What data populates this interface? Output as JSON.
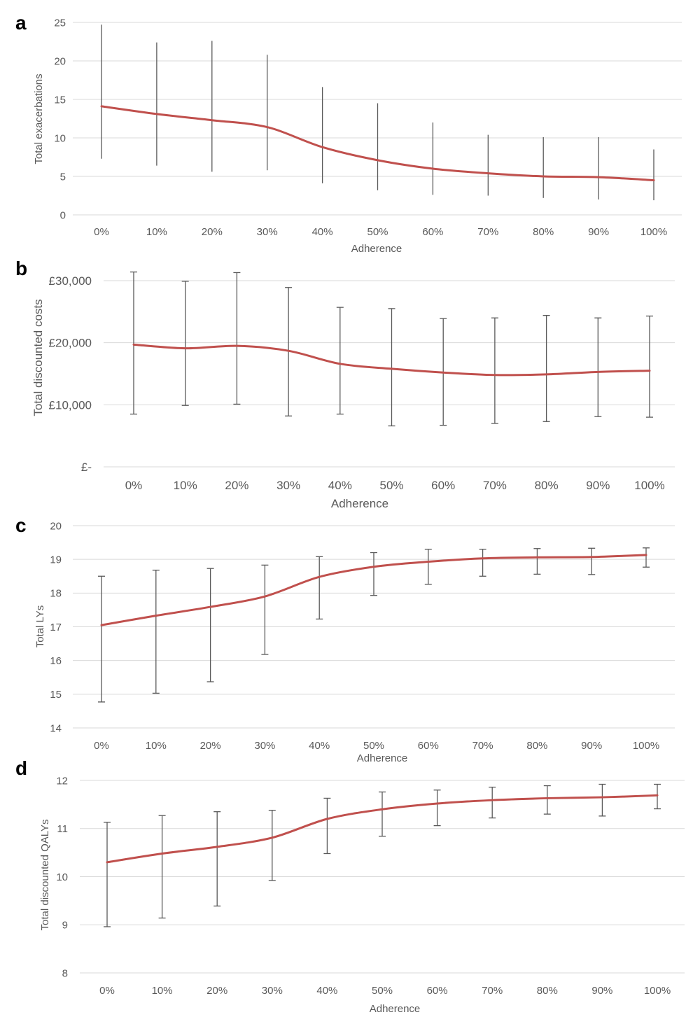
{
  "figure": {
    "series_color": "#c0504d",
    "categories": [
      "0%",
      "10%",
      "20%",
      "30%",
      "40%",
      "50%",
      "60%",
      "70%",
      "80%",
      "90%",
      "100%"
    ]
  },
  "chart_data": [
    {
      "type": "line",
      "panel": "a",
      "xlabel": "Adherence",
      "ylabel": "Total exacerbations",
      "ylim": [
        0,
        25
      ],
      "yticks": [
        0,
        5,
        10,
        15,
        20,
        25
      ],
      "ytick_labels": [
        "0",
        "5",
        "10",
        "15",
        "20",
        "25"
      ],
      "grid": true,
      "legend": "none",
      "categories": [
        "0%",
        "10%",
        "20%",
        "30%",
        "40%",
        "50%",
        "60%",
        "70%",
        "80%",
        "90%",
        "100%"
      ],
      "values": [
        14.1,
        13.1,
        12.3,
        11.4,
        8.8,
        7.1,
        6.0,
        5.4,
        5.0,
        4.9,
        4.5
      ],
      "error_low": [
        7.3,
        6.4,
        5.6,
        5.8,
        4.1,
        3.2,
        2.6,
        2.5,
        2.2,
        2.0,
        1.9
      ],
      "error_high": [
        24.7,
        22.4,
        22.6,
        20.8,
        16.6,
        14.5,
        12.0,
        10.4,
        10.1,
        10.1,
        8.5
      ]
    },
    {
      "type": "line",
      "panel": "b",
      "xlabel": "Adherence",
      "ylabel": "Total discounted costs",
      "ylim": [
        0,
        30000
      ],
      "yticks": [
        0,
        10000,
        20000,
        30000
      ],
      "ytick_labels": [
        "£-",
        "£10,000",
        "£20,000",
        "£30,000"
      ],
      "grid": true,
      "legend": "none",
      "categories": [
        "0%",
        "10%",
        "20%",
        "30%",
        "40%",
        "50%",
        "60%",
        "70%",
        "80%",
        "90%",
        "100%"
      ],
      "values": [
        19700,
        19100,
        19500,
        18700,
        16600,
        15800,
        15200,
        14800,
        14900,
        15300,
        15500
      ],
      "error_low": [
        8500,
        9900,
        10100,
        8200,
        8500,
        6600,
        6700,
        7000,
        7300,
        8100,
        8000
      ],
      "error_high": [
        31400,
        29900,
        31300,
        28900,
        25700,
        25500,
        23900,
        24000,
        24400,
        24000,
        24300
      ]
    },
    {
      "type": "line",
      "panel": "c",
      "xlabel": "Adherence",
      "ylabel": "Total LYs",
      "ylim": [
        14,
        20
      ],
      "yticks": [
        14,
        15,
        16,
        17,
        18,
        19,
        20
      ],
      "ytick_labels": [
        "14",
        "15",
        "16",
        "17",
        "18",
        "19",
        "20"
      ],
      "grid": true,
      "legend": "none",
      "categories": [
        "0%",
        "10%",
        "20%",
        "30%",
        "40%",
        "50%",
        "60%",
        "70%",
        "80%",
        "90%",
        "100%"
      ],
      "values": [
        17.05,
        17.33,
        17.59,
        17.9,
        18.48,
        18.78,
        18.93,
        19.03,
        19.06,
        19.07,
        19.13
      ],
      "error_low": [
        14.77,
        15.03,
        15.37,
        16.18,
        17.23,
        17.93,
        18.26,
        18.5,
        18.56,
        18.55,
        18.77
      ],
      "error_high": [
        18.5,
        18.68,
        18.73,
        18.83,
        19.08,
        19.2,
        19.3,
        19.3,
        19.32,
        19.33,
        19.34
      ]
    },
    {
      "type": "line",
      "panel": "d",
      "xlabel": "Adherence",
      "ylabel": "Total discounted QALYs",
      "ylim": [
        8,
        12
      ],
      "yticks": [
        8,
        9,
        10,
        11,
        12
      ],
      "ytick_labels": [
        "8",
        "9",
        "10",
        "11",
        "12"
      ],
      "grid": true,
      "legend": "none",
      "categories": [
        "0%",
        "10%",
        "20%",
        "30%",
        "40%",
        "50%",
        "60%",
        "70%",
        "80%",
        "90%",
        "100%"
      ],
      "values": [
        10.3,
        10.48,
        10.62,
        10.81,
        11.2,
        11.4,
        11.52,
        11.59,
        11.63,
        11.65,
        11.69
      ],
      "error_low": [
        8.96,
        9.14,
        9.39,
        9.92,
        10.48,
        10.84,
        11.06,
        11.22,
        11.3,
        11.26,
        11.41
      ],
      "error_high": [
        11.13,
        11.27,
        11.35,
        11.38,
        11.63,
        11.76,
        11.8,
        11.86,
        11.89,
        11.92,
        11.92
      ]
    }
  ]
}
